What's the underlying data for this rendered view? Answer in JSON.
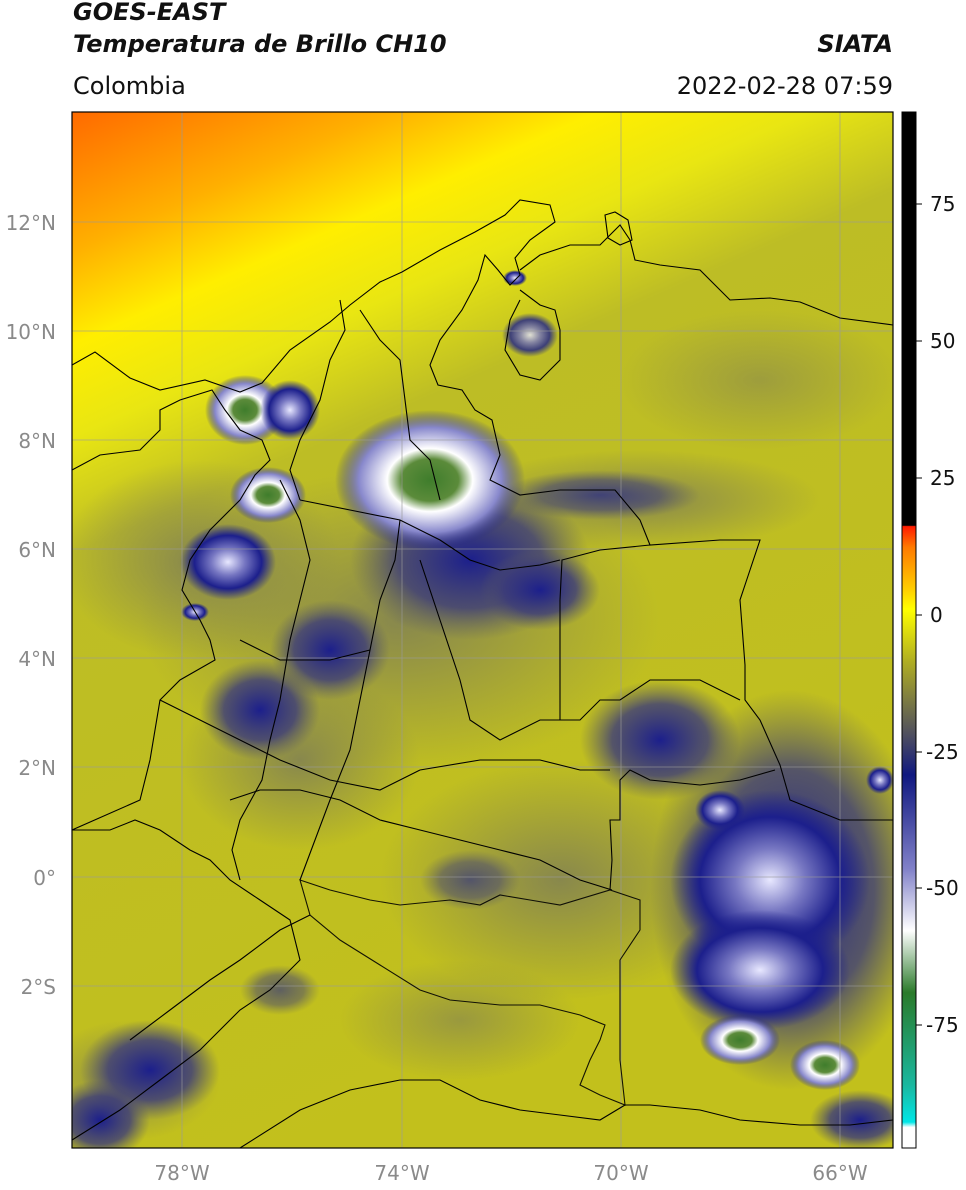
{
  "header": {
    "line1": "GOES-EAST",
    "line2": "Temperatura de Brillo CH10",
    "brand": "SIATA",
    "region": "Colombia",
    "timestamp": "2022-02-28 07:59"
  },
  "axes": {
    "lat_labels": [
      "12°N",
      "10°N",
      "8°N",
      "6°N",
      "4°N",
      "2°N",
      "0°",
      "2°S"
    ],
    "lon_labels": [
      "78°W",
      "74°W",
      "70°W",
      "66°W"
    ]
  },
  "colorbar": {
    "labels": [
      "75",
      "50",
      "25",
      "0",
      "-25",
      "-50",
      "-75"
    ],
    "stops": [
      {
        "color": "#ffffff"
      },
      {
        "color": "#00e0e0"
      },
      {
        "color": "#1aa87a"
      },
      {
        "color": "#3a7a20"
      },
      {
        "color": "#ffffff"
      },
      {
        "color": "#6a6ab8"
      },
      {
        "color": "#101888"
      },
      {
        "color": "#4a4a60"
      },
      {
        "color": "#c8c400"
      },
      {
        "color": "#ffff00"
      },
      {
        "color": "#ff9900"
      },
      {
        "color": "#ff2a00"
      },
      {
        "color": "#000000"
      }
    ]
  },
  "colors": {
    "warm_top": "#ff7a00",
    "mid_yellow": "#f2ef10",
    "surface_olive": "#b8b822",
    "cold_blue": "#1c1f8c",
    "cloud_white": "#f0f0ff",
    "core_green": "#3d7a2a"
  }
}
